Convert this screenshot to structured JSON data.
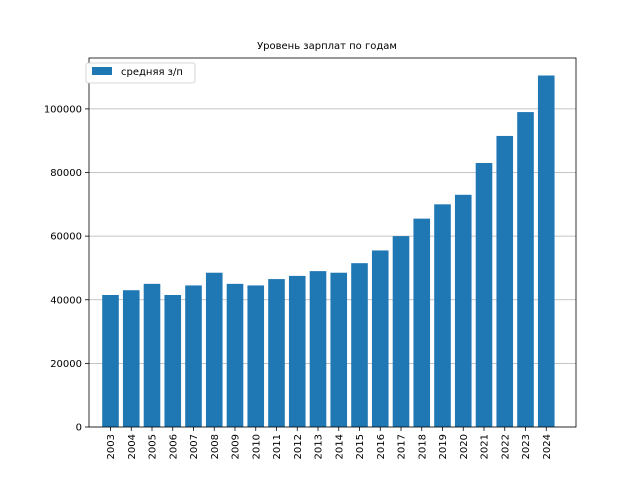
{
  "chart_data": {
    "type": "bar",
    "title": "Уровень зарплат по годам",
    "xlabel": "",
    "ylabel": "",
    "categories": [
      "2003",
      "2004",
      "2005",
      "2006",
      "2007",
      "2008",
      "2009",
      "2010",
      "2011",
      "2012",
      "2013",
      "2014",
      "2015",
      "2016",
      "2017",
      "2018",
      "2019",
      "2020",
      "2021",
      "2022",
      "2023",
      "2024"
    ],
    "series": [
      {
        "name": "средняя з/п",
        "values": [
          41500,
          43000,
          45000,
          41500,
          44500,
          48500,
          45000,
          44500,
          46500,
          47500,
          49000,
          48500,
          51500,
          55500,
          60000,
          65500,
          70000,
          73000,
          83000,
          91500,
          99000,
          110500
        ]
      }
    ],
    "yticks": [
      0,
      20000,
      40000,
      60000,
      80000,
      100000
    ],
    "ylim": [
      0,
      116000
    ],
    "grid": "y",
    "legend_position": "top-left",
    "colors": {
      "bar": "#1f77b4"
    }
  }
}
